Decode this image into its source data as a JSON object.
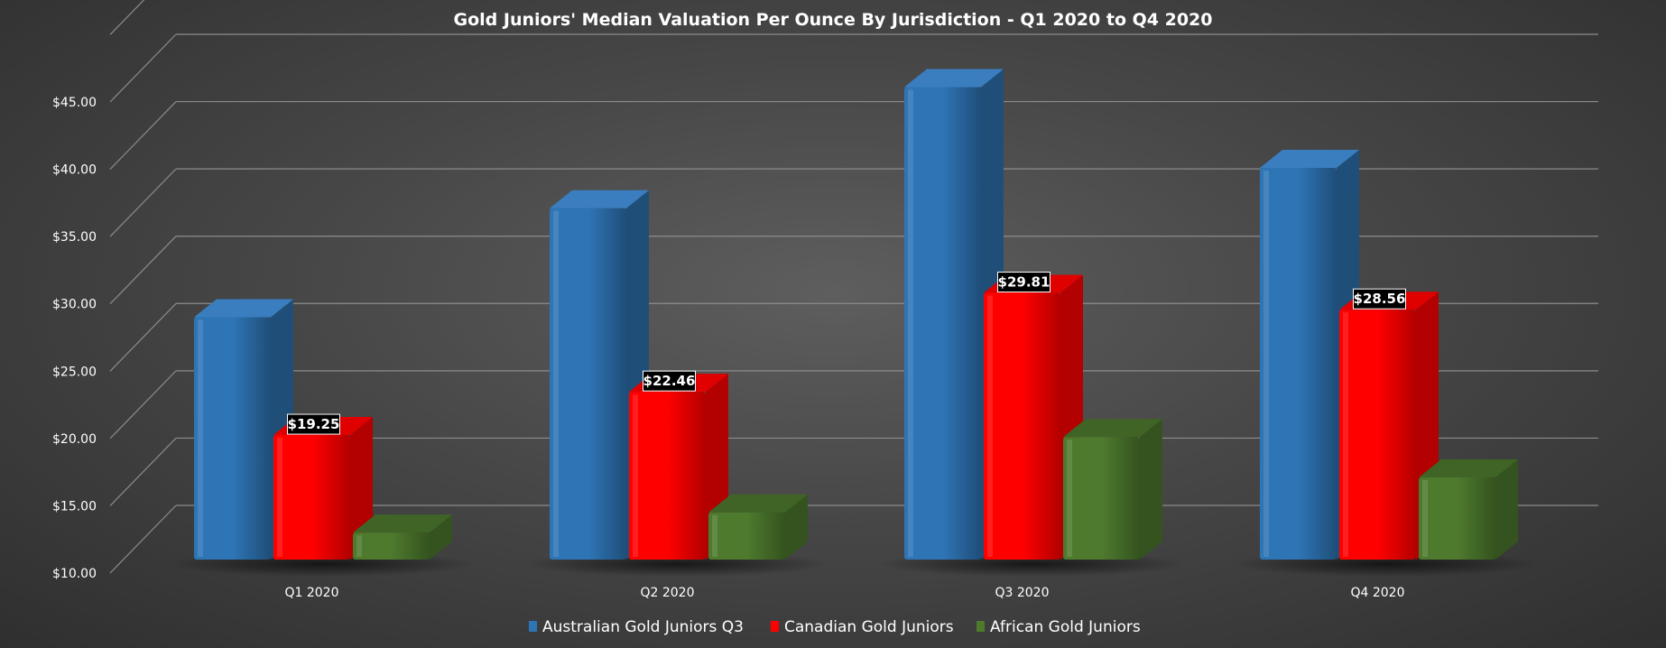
{
  "chart_data": {
    "type": "bar",
    "title": "Gold Juniors' Median Valuation Per Ounce By Jurisdiction - Q1 2020 to Q4 2020",
    "categories": [
      "Q1 2020",
      "Q2 2020",
      "Q3 2020",
      "Q4 2020"
    ],
    "yticks": [
      "$10.00",
      "$15.00",
      "$20.00",
      "$25.00",
      "$30.00",
      "$35.00",
      "$40.00",
      "$45.00"
    ],
    "ylim": [
      10,
      45
    ],
    "grid": true,
    "legend_position": "bottom",
    "series": [
      {
        "name": "Australian Gold Juniors Q3",
        "values": [
          28.0,
          36.1,
          45.1,
          39.1
        ],
        "labels": [
          "",
          "",
          "",
          ""
        ],
        "color": "#2e75b6",
        "dark": "#1f4e79",
        "top": "#3a7ebf"
      },
      {
        "name": "Canadian Gold Juniors",
        "values": [
          19.25,
          22.46,
          29.81,
          28.56
        ],
        "labels": [
          "$19.25",
          "$22.46",
          "$29.81",
          "$28.56"
        ],
        "color": "#ff0000",
        "dark": "#b30000",
        "top": "#e00000"
      },
      {
        "name": "African Gold Juniors",
        "values": [
          12.0,
          13.5,
          19.1,
          16.1
        ],
        "labels": [
          "",
          "",
          "",
          ""
        ],
        "color": "#4e7a2e",
        "dark": "#34531e",
        "top": "#3f6426"
      }
    ]
  }
}
